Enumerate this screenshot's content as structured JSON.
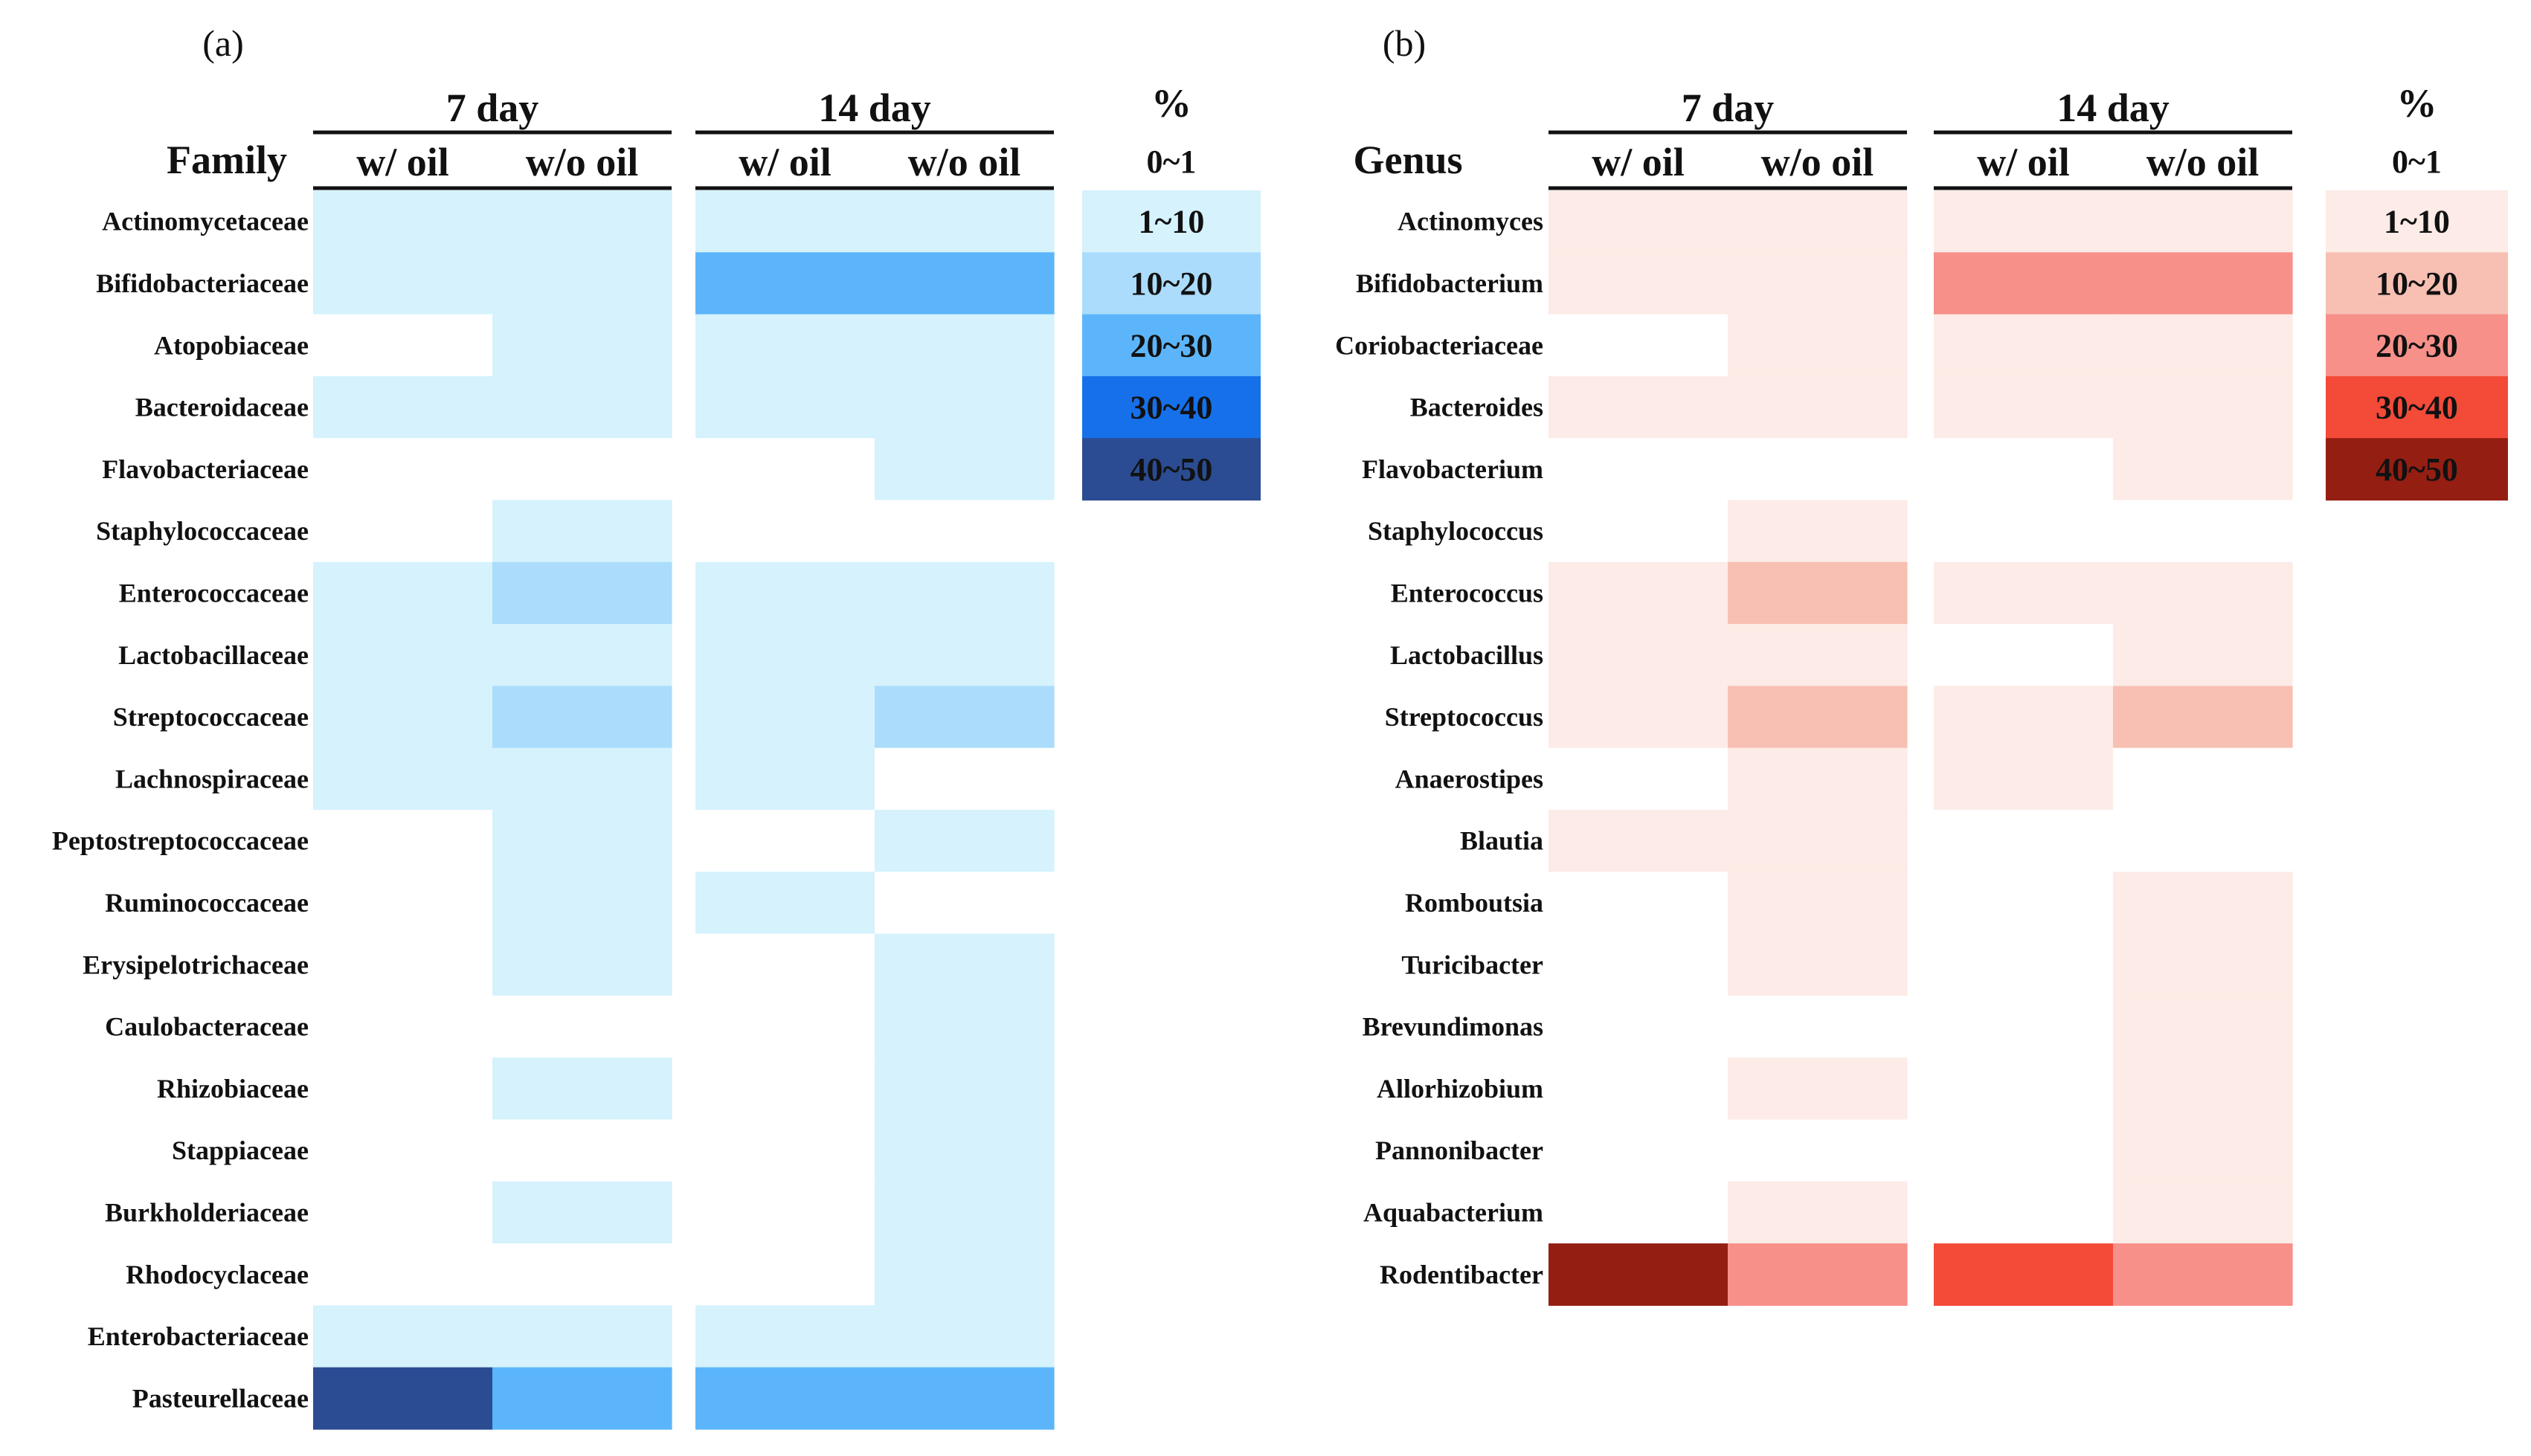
{
  "legend_levels": [
    "0~1",
    "1~10",
    "10~20",
    "20~30",
    "30~40",
    "40~50"
  ],
  "chart_data": [
    {
      "type": "heatmap",
      "panel_label": "(a)",
      "row_header": "Family",
      "group_titles": [
        "7 day",
        "14 day"
      ],
      "column_titles": [
        "w/ oil",
        "w/o oil",
        "w/ oil",
        "w/o oil"
      ],
      "legend_title": "%",
      "legend_labels": [
        "0~1",
        "1~10",
        "10~20",
        "20~30",
        "30~40",
        "40~50"
      ],
      "palette": [
        "#ffffff",
        "#d5f2fd",
        "#abdcfb",
        "#5cb5fa",
        "#1570ea",
        "#2b4c92"
      ],
      "rows": [
        {
          "name": "Actinomycetaceae",
          "levels": [
            1,
            1,
            1,
            1
          ]
        },
        {
          "name": "Bifidobacteriaceae",
          "levels": [
            1,
            1,
            3,
            3
          ]
        },
        {
          "name": "Atopobiaceae",
          "levels": [
            0,
            1,
            1,
            1
          ]
        },
        {
          "name": "Bacteroidaceae",
          "levels": [
            1,
            1,
            1,
            1
          ]
        },
        {
          "name": "Flavobacteriaceae",
          "levels": [
            0,
            0,
            0,
            1
          ]
        },
        {
          "name": "Staphylococcaceae",
          "levels": [
            0,
            1,
            0,
            0
          ]
        },
        {
          "name": "Enterococcaceae",
          "levels": [
            1,
            2,
            1,
            1
          ]
        },
        {
          "name": "Lactobacillaceae",
          "levels": [
            1,
            1,
            1,
            1
          ]
        },
        {
          "name": "Streptococcaceae",
          "levels": [
            1,
            2,
            1,
            2
          ]
        },
        {
          "name": "Lachnospiraceae",
          "levels": [
            1,
            1,
            1,
            0
          ]
        },
        {
          "name": "Peptostreptococcaceae",
          "levels": [
            0,
            1,
            0,
            1
          ]
        },
        {
          "name": "Ruminococcaceae",
          "levels": [
            0,
            1,
            1,
            0
          ]
        },
        {
          "name": "Erysipelotrichaceae",
          "levels": [
            0,
            1,
            0,
            1
          ]
        },
        {
          "name": "Caulobacteraceae",
          "levels": [
            0,
            0,
            0,
            1
          ]
        },
        {
          "name": "Rhizobiaceae",
          "levels": [
            0,
            1,
            0,
            1
          ]
        },
        {
          "name": "Stappiaceae",
          "levels": [
            0,
            0,
            0,
            1
          ]
        },
        {
          "name": "Burkholderiaceae",
          "levels": [
            0,
            1,
            0,
            1
          ]
        },
        {
          "name": "Rhodocyclaceae",
          "levels": [
            0,
            0,
            0,
            1
          ]
        },
        {
          "name": "Enterobacteriaceae",
          "levels": [
            1,
            1,
            1,
            1
          ]
        },
        {
          "name": "Pasteurellaceae",
          "levels": [
            5,
            3,
            3,
            3
          ]
        }
      ]
    },
    {
      "type": "heatmap",
      "panel_label": "(b)",
      "row_header": "Genus",
      "group_titles": [
        "7 day",
        "14 day"
      ],
      "column_titles": [
        "w/ oil",
        "w/o oil",
        "w/ oil",
        "w/o oil"
      ],
      "legend_title": "%",
      "legend_labels": [
        "0~1",
        "1~10",
        "10~20",
        "20~30",
        "30~40",
        "40~50"
      ],
      "palette": [
        "#ffffff",
        "#fdebe7",
        "#f7c0b3",
        "#f79089",
        "#f44a38",
        "#951e12"
      ],
      "rows": [
        {
          "name": "Actinomyces",
          "levels": [
            1,
            1,
            1,
            1
          ]
        },
        {
          "name": "Bifidobacterium",
          "levels": [
            1,
            1,
            3,
            3
          ]
        },
        {
          "name": "Coriobacteriaceae",
          "levels": [
            0,
            1,
            1,
            1
          ]
        },
        {
          "name": "Bacteroides",
          "levels": [
            1,
            1,
            1,
            1
          ]
        },
        {
          "name": "Flavobacterium",
          "levels": [
            0,
            0,
            0,
            1
          ]
        },
        {
          "name": "Staphylococcus",
          "levels": [
            0,
            1,
            0,
            0
          ]
        },
        {
          "name": "Enterococcus",
          "levels": [
            1,
            2,
            1,
            1
          ]
        },
        {
          "name": "Lactobacillus",
          "levels": [
            1,
            1,
            0,
            1
          ]
        },
        {
          "name": "Streptococcus",
          "levels": [
            1,
            2,
            1,
            2
          ]
        },
        {
          "name": "Anaerostipes",
          "levels": [
            0,
            1,
            1,
            0
          ]
        },
        {
          "name": "Blautia",
          "levels": [
            1,
            1,
            0,
            0
          ]
        },
        {
          "name": "Romboutsia",
          "levels": [
            0,
            1,
            0,
            1
          ]
        },
        {
          "name": "Turicibacter",
          "levels": [
            0,
            1,
            0,
            1
          ]
        },
        {
          "name": "Brevundimonas",
          "levels": [
            0,
            0,
            0,
            1
          ]
        },
        {
          "name": "Allorhizobium",
          "levels": [
            0,
            1,
            0,
            1
          ]
        },
        {
          "name": "Pannonibacter",
          "levels": [
            0,
            0,
            0,
            1
          ]
        },
        {
          "name": "Aquabacterium",
          "levels": [
            0,
            1,
            0,
            1
          ]
        },
        {
          "name": "Rodentibacter",
          "levels": [
            5,
            3,
            4,
            3
          ]
        }
      ]
    }
  ]
}
